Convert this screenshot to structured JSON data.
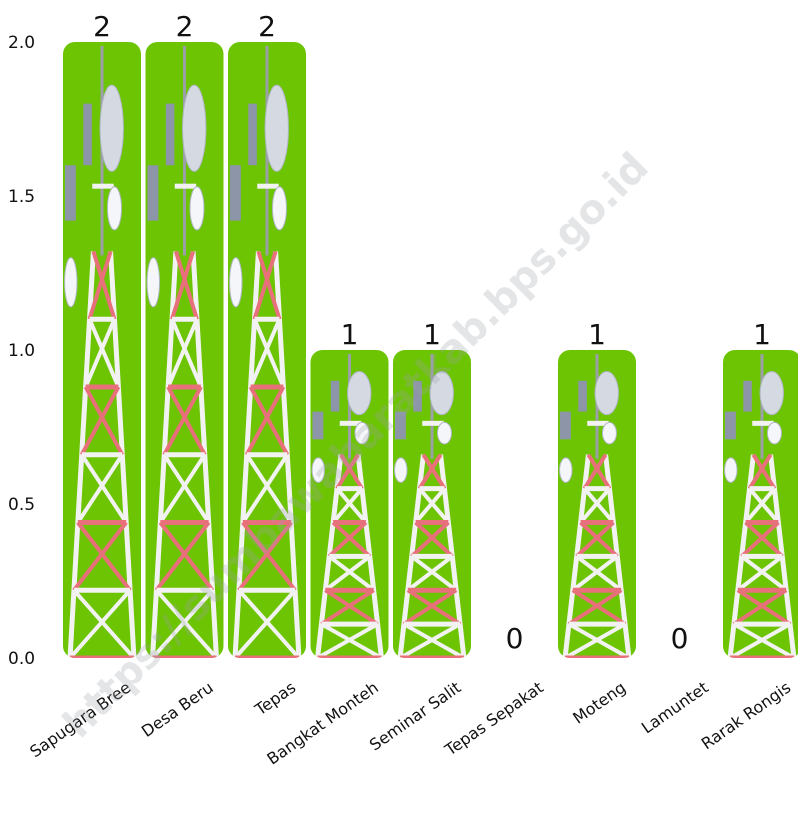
{
  "chart_data": {
    "type": "bar",
    "categories": [
      "Sapugara Bree",
      "Desa Beru",
      "Tepas",
      "Bangkat Monteh",
      "Seminar Salit",
      "Tepas Sepakat",
      "Moteng",
      "Lamuntet",
      "Rarak Rongis"
    ],
    "values": [
      2,
      2,
      2,
      1,
      1,
      0,
      1,
      0,
      1
    ],
    "y_ticks": [
      "0.0",
      "0.5",
      "1.0",
      "1.5",
      "2.0"
    ],
    "ylim": [
      0,
      2
    ],
    "grid": false,
    "legend": "none",
    "bar_style": "pictograph-telecom-tower",
    "colors": {
      "bar_bg": "#6cc403",
      "tower_red": "#e8707a",
      "tower_white": "#f2f2f2",
      "dish": "#d4d9e2"
    }
  },
  "watermark": "https://sumbawabaratkab.bps.go.id"
}
